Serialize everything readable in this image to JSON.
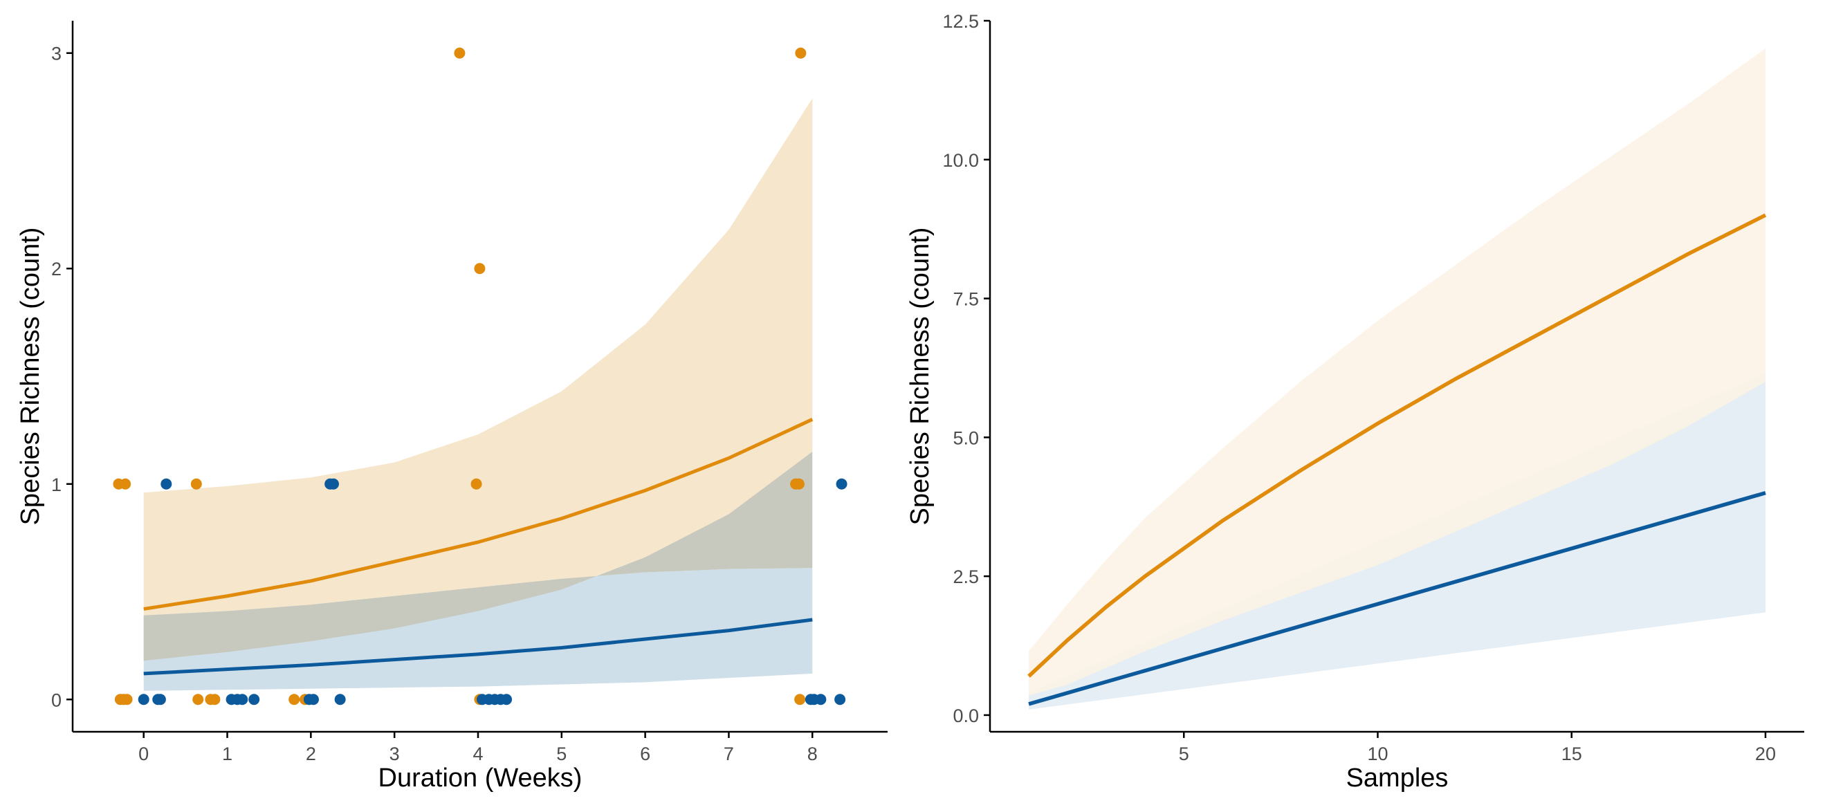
{
  "colors": {
    "orange": "#E08B0B",
    "blue": "#0C5A9C",
    "orange_band_left": "#F6E6CC",
    "blue_band_left": "#CFDFEA",
    "overlap_band_left": "#C7C9BE",
    "orange_band_right": "#FCF2E4",
    "blue_band_right": "#E5EDF5",
    "axis": "#000000",
    "tick_text": "#4d4d4d"
  },
  "chart_data": [
    {
      "type": "scatter",
      "title": "",
      "xlabel": "Duration (Weeks)",
      "ylabel": "Species Richness (count)",
      "xlim": [
        -0.85,
        8.9
      ],
      "ylim": [
        -0.15,
        3.15
      ],
      "xticks": [
        0,
        1,
        2,
        3,
        4,
        5,
        6,
        7,
        8
      ],
      "yticks": [
        0,
        1,
        2,
        3
      ],
      "grid": false,
      "legend": "none",
      "series": [
        {
          "color": "orange",
          "points": [
            {
              "x": -0.3,
              "y": 1
            },
            {
              "x": -0.22,
              "y": 1
            },
            {
              "x": -0.28,
              "y": 0
            },
            {
              "x": -0.24,
              "y": 0
            },
            {
              "x": -0.2,
              "y": 0
            },
            {
              "x": 0.63,
              "y": 1
            },
            {
              "x": 0.65,
              "y": 0
            },
            {
              "x": 0.8,
              "y": 0
            },
            {
              "x": 0.85,
              "y": 0
            },
            {
              "x": 1.8,
              "y": 0
            },
            {
              "x": 1.93,
              "y": 0
            },
            {
              "x": 3.78,
              "y": 3
            },
            {
              "x": 4.02,
              "y": 2
            },
            {
              "x": 3.98,
              "y": 1
            },
            {
              "x": 4.02,
              "y": 0
            },
            {
              "x": 7.86,
              "y": 3
            },
            {
              "x": 7.8,
              "y": 1
            },
            {
              "x": 7.84,
              "y": 1
            },
            {
              "x": 7.85,
              "y": 0
            }
          ],
          "fit": {
            "x": [
              0,
              1,
              2,
              3,
              4,
              5,
              6,
              7,
              8
            ],
            "y": [
              0.42,
              0.48,
              0.55,
              0.64,
              0.73,
              0.84,
              0.97,
              1.12,
              1.3
            ],
            "lower": [
              0.18,
              0.22,
              0.27,
              0.33,
              0.41,
              0.51,
              0.66,
              0.86,
              1.15
            ],
            "upper": [
              0.96,
              0.99,
              1.03,
              1.1,
              1.23,
              1.43,
              1.74,
              2.18,
              2.79
            ]
          }
        },
        {
          "color": "blue",
          "points": [
            {
              "x": 0.27,
              "y": 1
            },
            {
              "x": 2.23,
              "y": 1
            },
            {
              "x": 2.27,
              "y": 1
            },
            {
              "x": 8.35,
              "y": 1
            },
            {
              "x": 0.0,
              "y": 0
            },
            {
              "x": 0.17,
              "y": 0
            },
            {
              "x": 0.2,
              "y": 0
            },
            {
              "x": 1.05,
              "y": 0
            },
            {
              "x": 1.12,
              "y": 0
            },
            {
              "x": 1.18,
              "y": 0
            },
            {
              "x": 1.32,
              "y": 0
            },
            {
              "x": 1.98,
              "y": 0
            },
            {
              "x": 2.03,
              "y": 0
            },
            {
              "x": 2.35,
              "y": 0
            },
            {
              "x": 4.05,
              "y": 0
            },
            {
              "x": 4.13,
              "y": 0
            },
            {
              "x": 4.2,
              "y": 0
            },
            {
              "x": 4.27,
              "y": 0
            },
            {
              "x": 4.34,
              "y": 0
            },
            {
              "x": 7.98,
              "y": 0
            },
            {
              "x": 8.02,
              "y": 0
            },
            {
              "x": 8.1,
              "y": 0
            },
            {
              "x": 8.33,
              "y": 0
            }
          ],
          "fit": {
            "x": [
              0,
              1,
              2,
              3,
              4,
              5,
              6,
              7,
              8
            ],
            "y": [
              0.12,
              0.14,
              0.16,
              0.185,
              0.21,
              0.24,
              0.28,
              0.32,
              0.37
            ],
            "lower": [
              0.04,
              0.045,
              0.05,
              0.055,
              0.06,
              0.07,
              0.08,
              0.1,
              0.12
            ],
            "upper": [
              0.39,
              0.41,
              0.44,
              0.48,
              0.52,
              0.56,
              0.59,
              0.605,
              0.61
            ]
          }
        }
      ]
    },
    {
      "type": "line",
      "title": "",
      "xlabel": "Samples",
      "ylabel": "Species Richness (count)",
      "xlim": [
        0,
        21
      ],
      "ylim": [
        -0.3,
        12.5
      ],
      "xticks": [
        5,
        10,
        15,
        20
      ],
      "yticks": [
        "0.0",
        "2.5",
        "5.0",
        "7.5",
        "10.0",
        "12.5"
      ],
      "grid": false,
      "legend": "none",
      "series": [
        {
          "color": "orange",
          "x": [
            1,
            2,
            3,
            4,
            6,
            8,
            10,
            12,
            14,
            16,
            18,
            20
          ],
          "y": [
            0.7,
            1.35,
            1.95,
            2.5,
            3.5,
            4.4,
            5.25,
            6.05,
            6.8,
            7.55,
            8.3,
            9.0
          ],
          "lower": [
            0.35,
            0.55,
            0.85,
            1.15,
            1.7,
            2.2,
            2.7,
            3.3,
            3.9,
            4.5,
            5.2,
            6.0
          ],
          "upper": [
            1.15,
            2.0,
            2.8,
            3.55,
            4.8,
            6.0,
            7.1,
            8.1,
            9.1,
            10.05,
            11.0,
            12.0
          ]
        },
        {
          "color": "blue",
          "x": [
            1,
            20
          ],
          "y": [
            0.2,
            4.0
          ],
          "lower": [
            0.1,
            1.85
          ],
          "upper": [
            0.4,
            6.15
          ]
        }
      ]
    }
  ]
}
